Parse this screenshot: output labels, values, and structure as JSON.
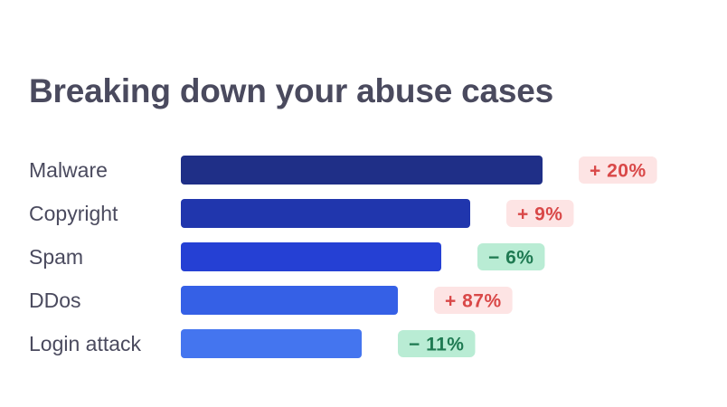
{
  "chart_data": {
    "type": "bar",
    "orientation": "horizontal",
    "title": "Breaking down your abuse cases",
    "xlabel": "",
    "ylabel": "",
    "grid": false,
    "categories": [
      "Malware",
      "Copyright",
      "Spam",
      "DDos",
      "Login attack"
    ],
    "values": [
      100,
      80,
      72,
      60,
      50
    ],
    "changes": [
      "+ 20%",
      "+ 9%",
      "− 6%",
      "+ 87%",
      "− 11%"
    ],
    "change_direction": [
      "up",
      "up",
      "down",
      "up",
      "down"
    ],
    "bar_colors": [
      "#1f2f87",
      "#2036ad",
      "#2540d4",
      "#3560e6",
      "#4475ef"
    ],
    "badge_styles": {
      "up": {
        "background": "#fde4e4",
        "text": "#d94848"
      },
      "down": {
        "background": "#b9ecd4",
        "text": "#1f7a52"
      }
    }
  }
}
